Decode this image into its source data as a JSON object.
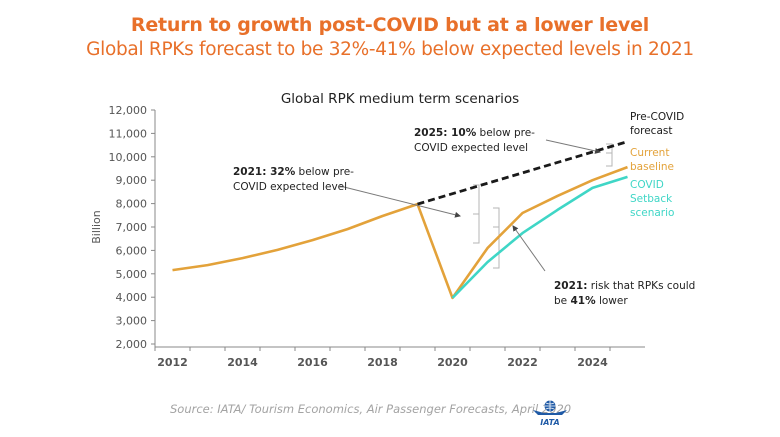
{
  "header": {
    "title": "Return to growth post-COVID but at a lower level",
    "subtitle": "Global RPKs forecast to be 32%-41% below expected levels in 2021"
  },
  "colors": {
    "title": "#e8702a",
    "baseline": "#e3a23a",
    "setback": "#3fd6c6",
    "precovid": "#1a1a1a",
    "axis": "#888888"
  },
  "chart_data": {
    "type": "line",
    "title": "Global RPK medium term scenarios",
    "xlabel": "",
    "ylabel": "Billion",
    "ylim": [
      2000,
      12000
    ],
    "yticks": [
      2000,
      3000,
      4000,
      5000,
      6000,
      7000,
      8000,
      9000,
      10000,
      11000,
      12000
    ],
    "ytick_labels": [
      "2,000",
      "3,000",
      "4,000",
      "5,000",
      "6,000",
      "7,000",
      "8,000",
      "9,000",
      "10,000",
      "11,000",
      "12,000"
    ],
    "xlim": [
      2011.5,
      2025.5
    ],
    "xtick_labels": [
      "2012",
      "2014",
      "2016",
      "2018",
      "2020",
      "2022",
      "2024"
    ],
    "grid": false,
    "legend": "right",
    "series": [
      {
        "name": "Pre-COVID forecast",
        "style": "dashed",
        "x": [
          2019,
          2025
        ],
        "values": [
          7980,
          10650
        ]
      },
      {
        "name": "Current baseline",
        "style": "solid",
        "x": [
          2012,
          2013,
          2014,
          2015,
          2016,
          2017,
          2018,
          2019,
          2020,
          2021,
          2022,
          2023,
          2024,
          2025
        ],
        "values": [
          5160,
          5370,
          5670,
          6020,
          6440,
          6910,
          7470,
          7980,
          3970,
          6100,
          7600,
          8330,
          9000,
          9560
        ]
      },
      {
        "name": "COVID Setback scenario",
        "style": "solid",
        "x": [
          2020,
          2021,
          2022,
          2023,
          2024,
          2025
        ],
        "values": [
          3970,
          5500,
          6740,
          7730,
          8670,
          9140
        ]
      }
    ],
    "annotations": [
      {
        "bold": "2021: 32%",
        "text": " below pre-",
        "line2": "COVID expected level"
      },
      {
        "bold": "2025: 10%",
        "text": " below pre-",
        "line2": "COVID expected level"
      },
      {
        "bold": "2021:",
        "text": " risk that RPKs could",
        "line2_pre": "be ",
        "line2_bold": "41%",
        "line2_post": " lower"
      }
    ],
    "legend_entries": [
      {
        "lines": [
          "Pre-COVID",
          "forecast"
        ]
      },
      {
        "lines": [
          "Current",
          "baseline"
        ]
      },
      {
        "lines": [
          "COVID",
          "Setback",
          "scenario"
        ]
      }
    ]
  },
  "footer": {
    "source": "Source: IATA/ Tourism Economics, Air Passenger Forecasts, April 2020",
    "logo_text": "IATA"
  }
}
